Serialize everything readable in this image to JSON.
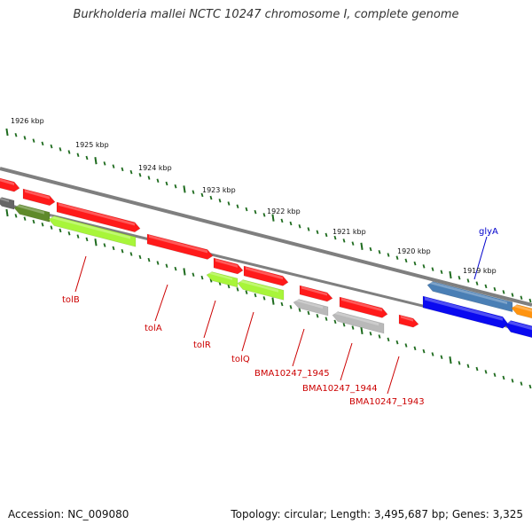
{
  "title": "Burkholderia mallei NCTC 10247 chromosome I, complete genome",
  "footer": {
    "accession": "Accession: NC_009080",
    "summary": "Topology: circular; Length: 3,495,687 bp; Genes: 3,325"
  },
  "colors": {
    "backbone": "#7f7f7f",
    "tick": "#1e6b1e",
    "forward_gene": "#ff1a1a",
    "reverse_gene": "#a8f53a",
    "pseudo_gene": "#b9b9b9",
    "dark_olive": "#5f8a2a",
    "label_default": "#cc0000",
    "label_highlight": "#0000cc",
    "steel_blue": "#4a7fb5",
    "blue": "#0a0af0",
    "orange": "#ff9410",
    "dark_gray": "#666666"
  },
  "scale": {
    "ticks": [
      {
        "label": "1926 kbp"
      },
      {
        "label": "1925 kbp"
      },
      {
        "label": "1924 kbp"
      },
      {
        "label": "1923 kbp"
      },
      {
        "label": "1922 kbp"
      },
      {
        "label": "1921 kbp"
      },
      {
        "label": "1920 kbp"
      },
      {
        "label": "1919 kbp"
      }
    ]
  },
  "gene_labels": [
    {
      "name": "tolB",
      "color": "label_default"
    },
    {
      "name": "tolA",
      "color": "label_default"
    },
    {
      "name": "tolR",
      "color": "label_default"
    },
    {
      "name": "tolQ",
      "color": "label_default"
    },
    {
      "name": "BMA10247_1945",
      "color": "label_default"
    },
    {
      "name": "BMA10247_1944",
      "color": "label_default"
    },
    {
      "name": "BMA10247_1943",
      "color": "label_default"
    },
    {
      "name": "glyA",
      "color": "label_highlight"
    }
  ]
}
